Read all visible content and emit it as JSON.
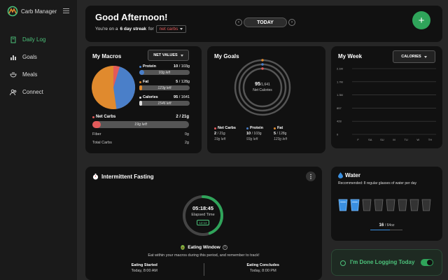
{
  "app": {
    "name": "Carb Manager"
  },
  "sidebar": {
    "items": [
      {
        "label": "Daily Log",
        "icon": "notebook-icon",
        "active": true
      },
      {
        "label": "Goals",
        "icon": "bar-chart-icon"
      },
      {
        "label": "Meals",
        "icon": "bowl-icon"
      },
      {
        "label": "Connect",
        "icon": "users-icon"
      }
    ]
  },
  "header": {
    "greeting": "Good Afternoon!",
    "streak_prefix": "You're on a",
    "streak_count": "6 day streak",
    "streak_suffix": "for",
    "carb_mode": "net carbs",
    "date_label": "TODAY",
    "prev": "‹",
    "next": "›",
    "add": "+"
  },
  "macros": {
    "title": "My Macros",
    "mode_label": "NET VALUES",
    "items": [
      {
        "name": "Protein",
        "value": "10",
        "goal": "/ 103g",
        "left": "93g left",
        "color": "#4a7fc9",
        "fraction": 0.1
      },
      {
        "name": "Fat",
        "value": "5",
        "goal": "/ 128g",
        "left": "123g left",
        "color": "#e08a2e",
        "fraction": 0.04
      },
      {
        "name": "Calories",
        "value": "95",
        "goal": "/ 1641",
        "left": "1546 left",
        "color": "#dddddd",
        "fraction": 0.06
      }
    ],
    "net_carbs": {
      "name": "Net Carbs",
      "value": "2 / 21g",
      "left": "19g left",
      "color": "#e25a5a"
    },
    "fiber": {
      "name": "Fiber",
      "value": "0g"
    },
    "total_carbs": {
      "name": "Total Carbs",
      "value": "2g"
    },
    "pie_colors": {
      "protein": "#4a7fc9",
      "fat": "#e08a2e",
      "carbs": "#e25a5a"
    }
  },
  "goals": {
    "title": "My Goals",
    "center_value": "95",
    "center_goal": "/1,641",
    "center_label": "Net Calories",
    "cols": [
      {
        "name": "Net Carbs",
        "value": "2",
        "goal": "/ 21g",
        "left": "19g left",
        "color": "#e25a5a"
      },
      {
        "name": "Protein",
        "value": "10",
        "goal": "/ 103g",
        "left": "93g left",
        "color": "#4a7fc9"
      },
      {
        "name": "Fat",
        "value": "5",
        "goal": "/ 128g",
        "left": "123g left",
        "color": "#e08a2e"
      }
    ]
  },
  "week": {
    "title": "My Week",
    "mode_label": "CALORIES",
    "chart_data": {
      "type": "bar",
      "y_ticks": [
        "2.1M",
        "1.7M",
        "1.3M",
        "857",
        "428",
        "0"
      ],
      "categories": [
        "F",
        "SA",
        "SU",
        "M",
        "TU",
        "W",
        "TH"
      ],
      "values": [
        0,
        0,
        0,
        0,
        0,
        0,
        0
      ],
      "grid": true
    }
  },
  "fasting": {
    "title": "Intermittent Fasting",
    "elapsed_value": "05:18:45",
    "elapsed_label": "Elapsed Time",
    "chip": "12:12",
    "progress": 0.44,
    "window_title": "Eating Window",
    "info": "i",
    "window_desc": "Eat within your macros during this period, and remember to track!",
    "start_title": "Eating Started",
    "start_value": "Today, 8:00 AM",
    "end_title": "Eating Concludes",
    "end_value": "Today, 8:00 PM",
    "more": "⋮"
  },
  "water": {
    "title": "Water",
    "recommend": "Recommended: 8 regular glasses of water per day",
    "glasses_total": 8,
    "glasses_filled": 2,
    "amount": "16",
    "amount_goal": "/ 64oz"
  },
  "done": {
    "label": "I'm Done Logging Today",
    "toggle_on": true
  }
}
